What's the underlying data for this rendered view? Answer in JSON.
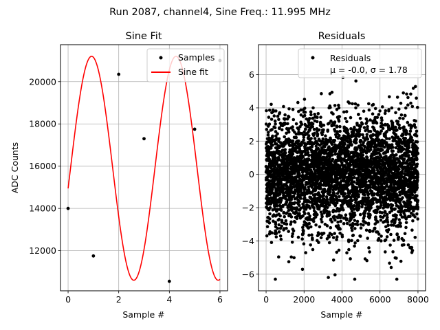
{
  "suptitle": "Run 2087, channel4, Sine Freq.: 11.995 MHz",
  "chart_data": [
    {
      "type": "line",
      "title": "Sine Fit",
      "xlabel": "Sample #",
      "ylabel": "ADC Counts",
      "xlim": [
        -0.3,
        6.3
      ],
      "ylim": [
        10100,
        21750
      ],
      "xticks": [
        0,
        2,
        4,
        6
      ],
      "yticks": [
        12000,
        14000,
        16000,
        18000,
        20000
      ],
      "grid": true,
      "legend_position": "top-right",
      "series": [
        {
          "name": "Samples",
          "style": "points",
          "color": "#000000",
          "x": [
            0,
            1,
            2,
            3,
            4,
            5,
            6
          ],
          "y": [
            14000,
            11750,
            20350,
            17300,
            10550,
            17750,
            21000
          ]
        },
        {
          "name": "Sine fit",
          "style": "line",
          "color": "#ff0000",
          "function": {
            "offset": 15900,
            "amplitude": 5300,
            "angular_freq_per_sample": 1.8846,
            "phase": -0.1808,
            "x_start": 0,
            "x_end": 6,
            "samples": 400
          }
        }
      ]
    },
    {
      "type": "scatter",
      "title": "Residuals",
      "xlabel": "Sample #",
      "ylabel": "",
      "xlim": [
        -400,
        8400
      ],
      "ylim": [
        -7,
        7.8
      ],
      "xticks": [
        0,
        2000,
        4000,
        6000,
        8000
      ],
      "yticks": [
        -6,
        -4,
        -2,
        0,
        2,
        4,
        6
      ],
      "grid": true,
      "legend_position": "top-right",
      "series": [
        {
          "name": "Residuals",
          "stats_label": "μ = -0.0, σ = 1.78",
          "mu": -0.0,
          "sigma": 1.78,
          "n_points": 8000,
          "color": "#000000"
        }
      ]
    }
  ]
}
